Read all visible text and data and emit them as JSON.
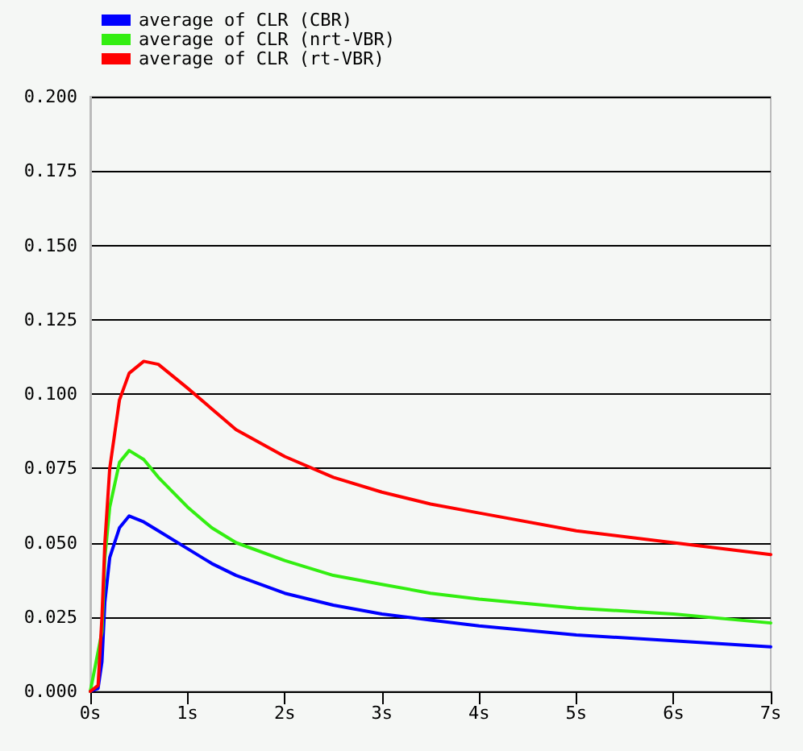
{
  "chart_data": {
    "type": "line",
    "x": [
      0,
      0.08,
      0.12,
      0.15,
      0.2,
      0.3,
      0.4,
      0.55,
      0.7,
      1,
      1.25,
      1.5,
      2,
      2.5,
      3,
      3.5,
      4,
      5,
      6,
      7
    ],
    "series": [
      {
        "name": "average of CLR (CBR)",
        "color": "#0000ff",
        "values": [
          0,
          0.001,
          0.01,
          0.03,
          0.045,
          0.055,
          0.059,
          0.057,
          0.054,
          0.048,
          0.043,
          0.039,
          0.033,
          0.029,
          0.026,
          0.024,
          0.022,
          0.019,
          0.017,
          0.015
        ]
      },
      {
        "name": "average of CLR (nrt-VBR)",
        "color": "#33ee11",
        "x": [
          0,
          0.12,
          0.15,
          0.2,
          0.3,
          0.4,
          0.55,
          0.7,
          1,
          1.25,
          1.5,
          2,
          2.5,
          3,
          3.5,
          4,
          5,
          6,
          7
        ],
        "values": [
          0,
          0.02,
          0.045,
          0.062,
          0.077,
          0.081,
          0.078,
          0.072,
          0.062,
          0.055,
          0.05,
          0.044,
          0.039,
          0.036,
          0.033,
          0.031,
          0.028,
          0.026,
          0.023
        ]
      },
      {
        "name": "average of CLR (rt-VBR)",
        "color": "#ff0000",
        "values": [
          0,
          0.002,
          0.025,
          0.05,
          0.075,
          0.098,
          0.107,
          0.111,
          0.11,
          0.102,
          0.095,
          0.088,
          0.079,
          0.072,
          0.067,
          0.063,
          0.06,
          0.054,
          0.05,
          0.046
        ]
      }
    ],
    "xlim": [
      0,
      7
    ],
    "xticks": [
      {
        "value": 0,
        "label": "0s"
      },
      {
        "value": 1,
        "label": "1s"
      },
      {
        "value": 2,
        "label": "2s"
      },
      {
        "value": 3,
        "label": "3s"
      },
      {
        "value": 4,
        "label": "4s"
      },
      {
        "value": 5,
        "label": "5s"
      },
      {
        "value": 6,
        "label": "6s"
      },
      {
        "value": 7,
        "label": "7s"
      }
    ],
    "ylim": [
      0,
      0.2
    ],
    "yticks": [
      {
        "value": 0,
        "label": "0.000"
      },
      {
        "value": 0.025,
        "label": "0.025"
      },
      {
        "value": 0.05,
        "label": "0.050"
      },
      {
        "value": 0.075,
        "label": "0.075"
      },
      {
        "value": 0.1,
        "label": "0.100"
      },
      {
        "value": 0.125,
        "label": "0.125"
      },
      {
        "value": 0.15,
        "label": "0.150"
      },
      {
        "value": 0.175,
        "label": "0.175"
      },
      {
        "value": 0.2,
        "label": "0.200"
      }
    ],
    "grid": "y",
    "legend": "top left",
    "marker": "none",
    "line_style": "solid"
  }
}
